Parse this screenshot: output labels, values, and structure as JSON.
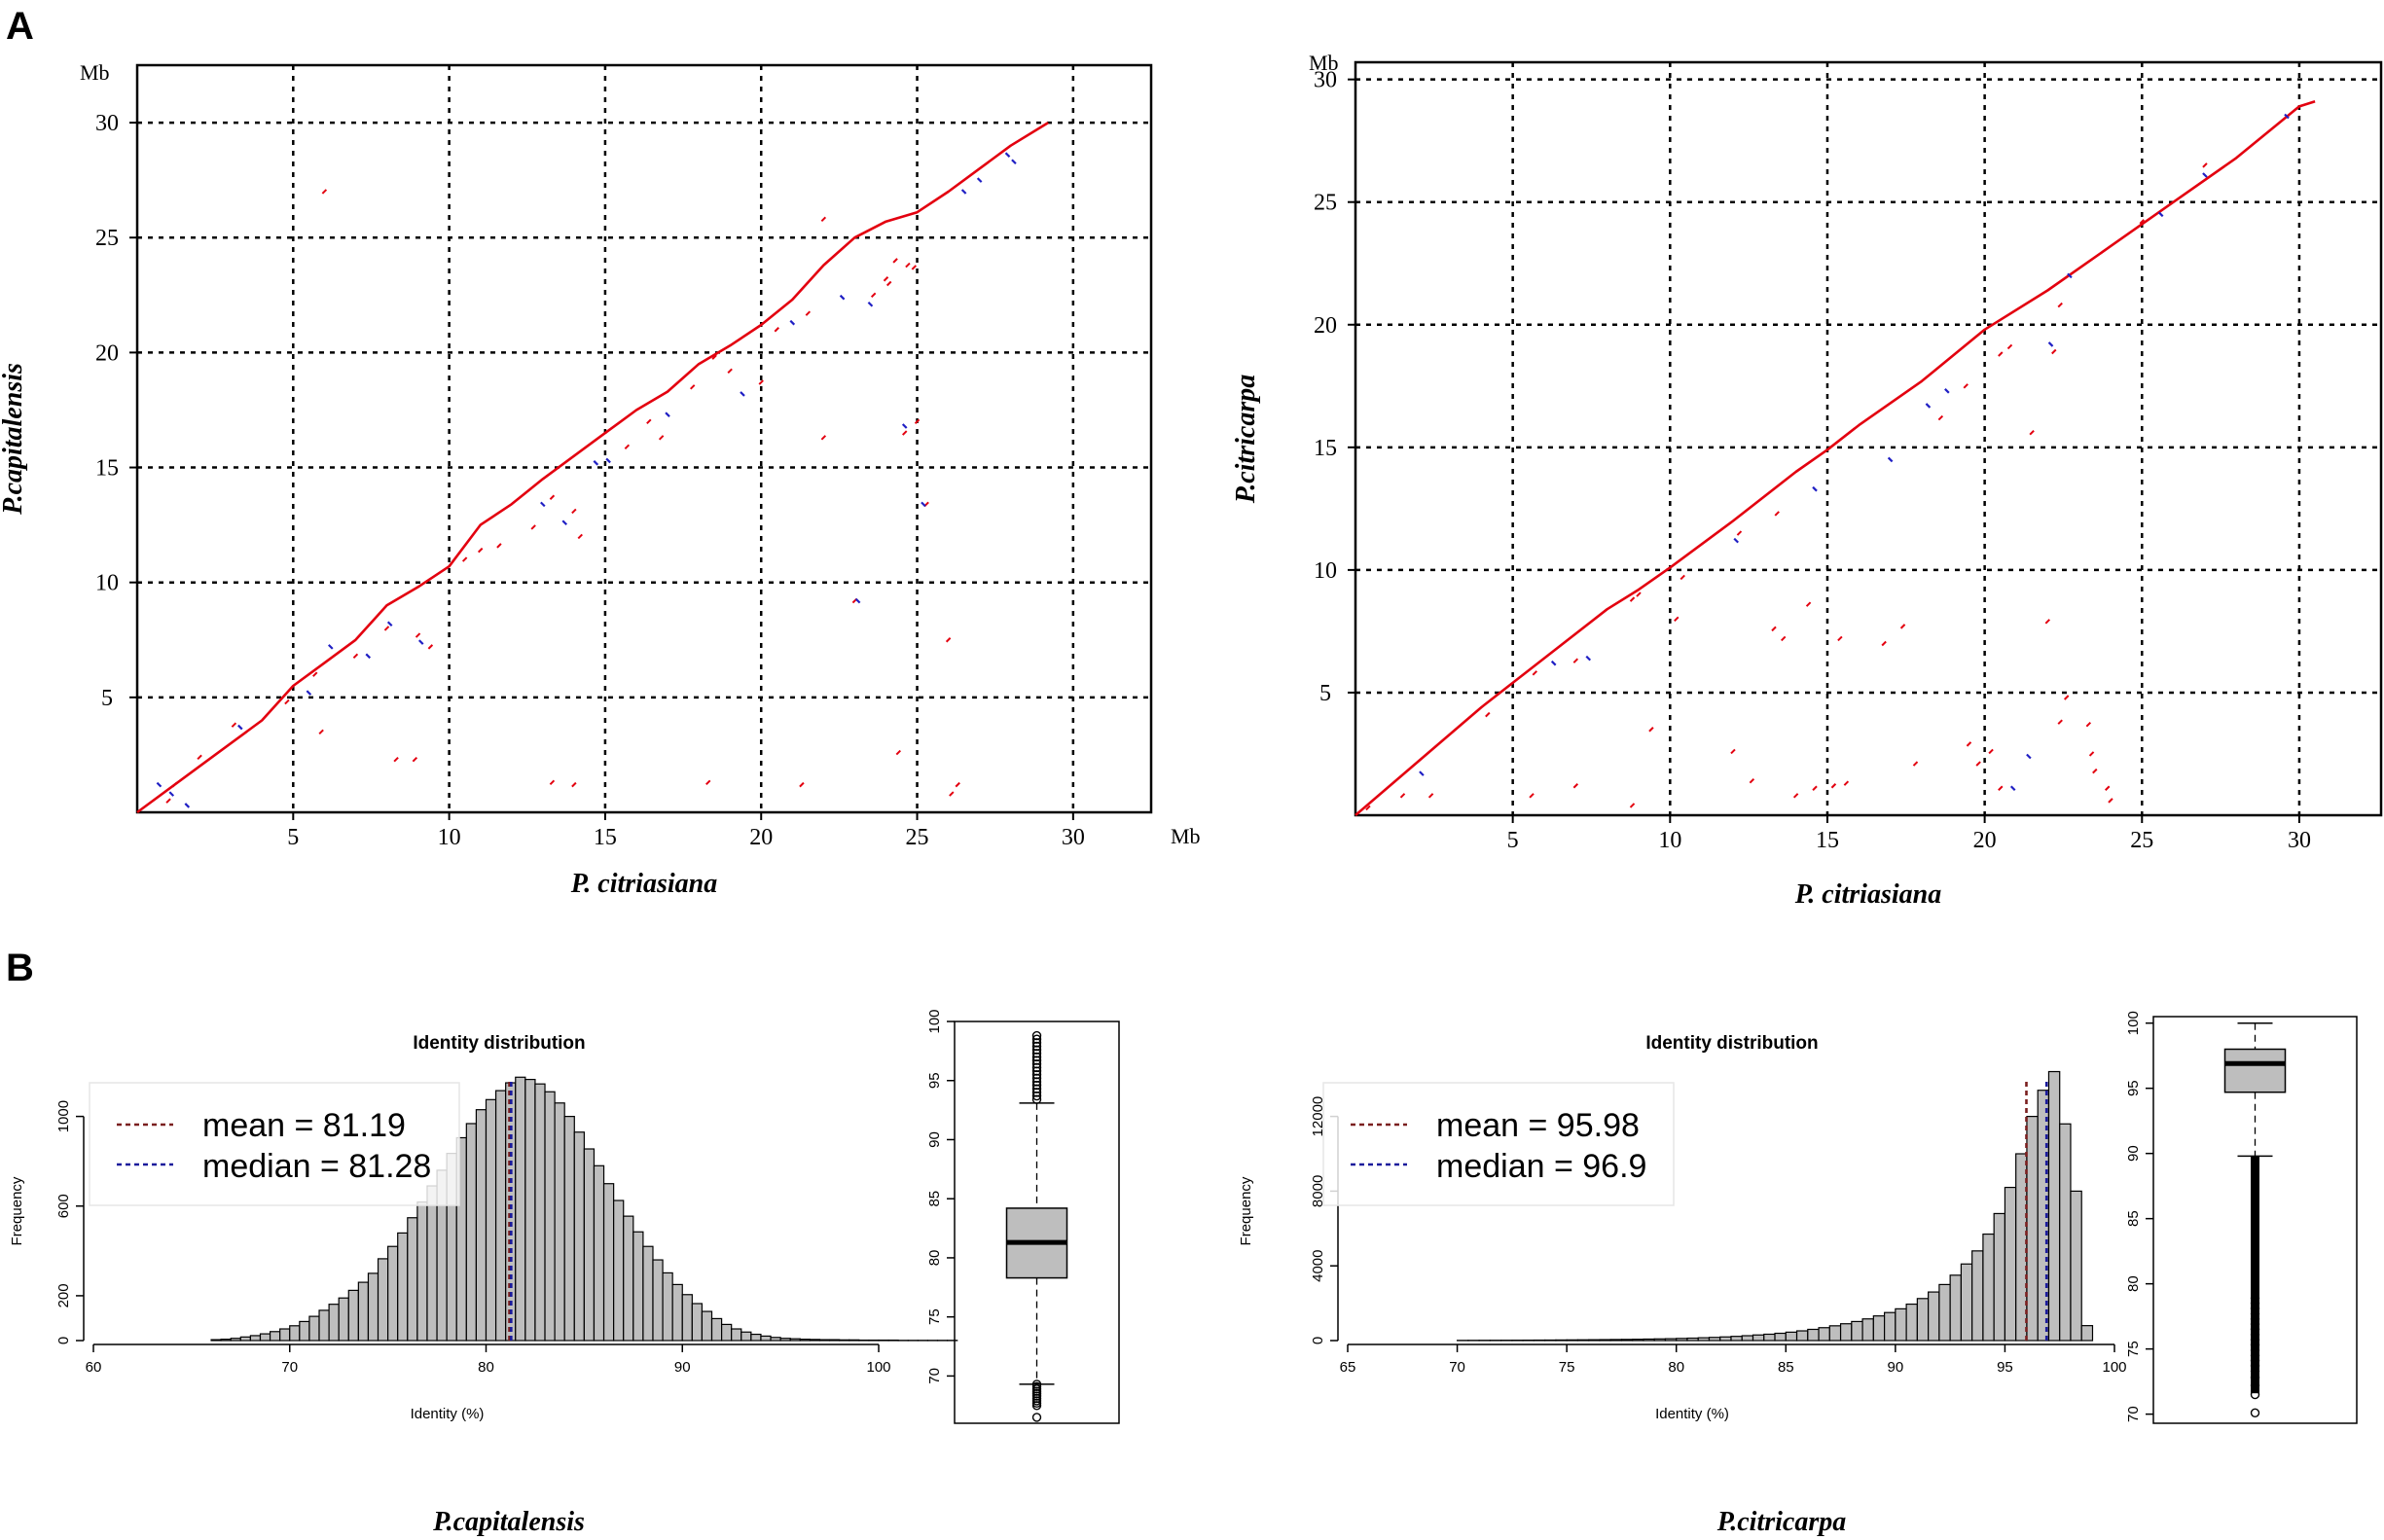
{
  "panel_labels": [
    "A",
    "B"
  ],
  "chart_data": [
    {
      "type": "scatter",
      "id": "dot1",
      "title": "",
      "xlabel": "P. citriasiana",
      "ylabel": "P.capitalensis",
      "x_unit": "Mb",
      "y_unit": "Mb",
      "xlim": [
        0,
        32.5
      ],
      "ylim": [
        0,
        32.5
      ],
      "xticks": [
        5,
        10,
        15,
        20,
        25,
        30
      ],
      "yticks": [
        5,
        10,
        15,
        20,
        25,
        30
      ],
      "grid": true,
      "colors": {
        "forward": "#e3000f",
        "reverse": "#1f1fc4"
      },
      "diagonal": [
        [
          0,
          0
        ],
        [
          2,
          2
        ],
        [
          4,
          4
        ],
        [
          5,
          5.5
        ],
        [
          6,
          6.5
        ],
        [
          7,
          7.5
        ],
        [
          8,
          9
        ],
        [
          9,
          9.8
        ],
        [
          10,
          10.7
        ],
        [
          11,
          12.5
        ],
        [
          12,
          13.4
        ],
        [
          13,
          14.5
        ],
        [
          14,
          15.5
        ],
        [
          15,
          16.5
        ],
        [
          16,
          17.5
        ],
        [
          17,
          18.3
        ],
        [
          18,
          19.5
        ],
        [
          19,
          20.3
        ],
        [
          20,
          21.2
        ],
        [
          21,
          22.3
        ],
        [
          22,
          23.8
        ],
        [
          23,
          25
        ],
        [
          24,
          25.7
        ],
        [
          25,
          26.1
        ],
        [
          26,
          27
        ],
        [
          27,
          28
        ],
        [
          28,
          29
        ],
        [
          29.2,
          30
        ]
      ],
      "scatter_forward": [
        [
          6,
          27
        ],
        [
          5.9,
          3.5
        ],
        [
          8.3,
          2.3
        ],
        [
          8.9,
          2.3
        ],
        [
          13.3,
          1.3
        ],
        [
          14,
          1.2
        ],
        [
          18.3,
          1.3
        ],
        [
          21.3,
          1.2
        ],
        [
          24.4,
          2.6
        ],
        [
          26.1,
          0.8
        ],
        [
          26.3,
          1.2
        ],
        [
          26,
          7.5
        ],
        [
          23,
          9.2
        ],
        [
          25.3,
          13.4
        ],
        [
          24.6,
          16.5
        ],
        [
          25,
          17
        ],
        [
          22,
          16.3
        ],
        [
          23.6,
          22.5
        ],
        [
          24,
          23.2
        ],
        [
          24.7,
          23.8
        ],
        [
          24.3,
          24
        ],
        [
          24.1,
          23
        ],
        [
          21.5,
          21.7
        ],
        [
          20.5,
          21
        ],
        [
          18.5,
          19.8
        ],
        [
          19,
          19.2
        ],
        [
          17.8,
          18.5
        ],
        [
          16.4,
          17
        ],
        [
          15.7,
          15.9
        ],
        [
          14.2,
          12
        ],
        [
          14,
          13.1
        ],
        [
          13.3,
          13.7
        ],
        [
          11.6,
          11.6
        ],
        [
          12.7,
          12.4
        ],
        [
          9,
          7.7
        ],
        [
          9.4,
          7.2
        ],
        [
          8,
          8
        ],
        [
          7,
          6.8
        ],
        [
          5.7,
          6
        ],
        [
          4.8,
          4.8
        ],
        [
          3.1,
          3.8
        ],
        [
          2,
          2.4
        ],
        [
          1.2,
          1.2
        ],
        [
          1,
          0.5
        ],
        [
          22,
          25.8
        ],
        [
          24.9,
          23.7
        ],
        [
          20,
          18.7
        ],
        [
          16.8,
          16.3
        ],
        [
          10.5,
          11
        ],
        [
          11,
          11.4
        ]
      ],
      "scatter_reverse": [
        [
          8.1,
          8.2
        ],
        [
          7.4,
          6.8
        ],
        [
          9.1,
          7.4
        ],
        [
          6.2,
          7.2
        ],
        [
          5.5,
          5.2
        ],
        [
          3.3,
          3.7
        ],
        [
          1.1,
          0.8
        ],
        [
          0.7,
          1.2
        ],
        [
          1.6,
          0.3
        ],
        [
          13,
          13.4
        ],
        [
          13.7,
          12.6
        ],
        [
          14.7,
          15.2
        ],
        [
          15.1,
          15.3
        ],
        [
          17,
          17.3
        ],
        [
          19.4,
          18.2
        ],
        [
          22.6,
          22.4
        ],
        [
          23.5,
          22.1
        ],
        [
          21,
          21.3
        ],
        [
          24.6,
          16.8
        ],
        [
          25.2,
          13.4
        ],
        [
          23.1,
          9.2
        ],
        [
          27,
          27.5
        ],
        [
          26.5,
          27
        ],
        [
          27.9,
          28.6
        ],
        [
          28.1,
          28.3
        ]
      ]
    },
    {
      "type": "scatter",
      "id": "dot2",
      "title": "",
      "xlabel": "P. citriasiana",
      "ylabel": "P.citricarpa",
      "x_unit": "Mb",
      "y_unit": "Mb",
      "xlim": [
        0,
        32.6
      ],
      "ylim": [
        0,
        30.7
      ],
      "xticks": [
        5,
        10,
        15,
        20,
        25,
        30
      ],
      "yticks": [
        5,
        10,
        15,
        20,
        25,
        30
      ],
      "grid": true,
      "colors": {
        "forward": "#e3000f",
        "reverse": "#1f1fc4"
      },
      "diagonal": [
        [
          0,
          0
        ],
        [
          2,
          2.2
        ],
        [
          4,
          4.4
        ],
        [
          6,
          6.4
        ],
        [
          8,
          8.4
        ],
        [
          9,
          9.2
        ],
        [
          10,
          10.1
        ],
        [
          12,
          12
        ],
        [
          14,
          14
        ],
        [
          15,
          14.9
        ],
        [
          16,
          15.9
        ],
        [
          18,
          17.7
        ],
        [
          20,
          19.8
        ],
        [
          22,
          21.4
        ],
        [
          24,
          23.2
        ],
        [
          26,
          25
        ],
        [
          28,
          26.8
        ],
        [
          30,
          28.9
        ],
        [
          30.5,
          29.1
        ]
      ],
      "scatter_forward": [
        [
          0.4,
          0.3
        ],
        [
          1.5,
          0.8
        ],
        [
          2.4,
          0.8
        ],
        [
          5.6,
          0.8
        ],
        [
          7,
          1.2
        ],
        [
          8.8,
          0.4
        ],
        [
          9.4,
          3.5
        ],
        [
          10.2,
          8
        ],
        [
          8.8,
          8.8
        ],
        [
          12,
          2.6
        ],
        [
          12.6,
          1.4
        ],
        [
          14,
          0.8
        ],
        [
          14.6,
          1.1
        ],
        [
          15.2,
          1.2
        ],
        [
          15.6,
          1.3
        ],
        [
          13.3,
          7.6
        ],
        [
          13.6,
          7.2
        ],
        [
          14.4,
          8.6
        ],
        [
          15.4,
          7.2
        ],
        [
          16.8,
          7
        ],
        [
          17.4,
          7.7
        ],
        [
          17.8,
          2.1
        ],
        [
          18.6,
          16.2
        ],
        [
          19.4,
          17.5
        ],
        [
          19.5,
          2.9
        ],
        [
          19.8,
          2.1
        ],
        [
          20.2,
          2.6
        ],
        [
          20.5,
          1.1
        ],
        [
          21.5,
          15.6
        ],
        [
          22,
          7.9
        ],
        [
          22.2,
          18.9
        ],
        [
          22.4,
          20.8
        ],
        [
          22.6,
          4.8
        ],
        [
          22.4,
          3.8
        ],
        [
          23.3,
          3.7
        ],
        [
          23.4,
          2.5
        ],
        [
          23.5,
          1.8
        ],
        [
          23.9,
          1.1
        ],
        [
          24,
          0.6
        ],
        [
          13.4,
          12.3
        ],
        [
          12.2,
          11.5
        ],
        [
          10.4,
          9.7
        ],
        [
          9,
          9
        ],
        [
          7,
          6.3
        ],
        [
          5.7,
          5.8
        ],
        [
          4.2,
          4.1
        ],
        [
          20.5,
          18.8
        ],
        [
          20.8,
          19.1
        ],
        [
          25,
          24.2
        ],
        [
          27,
          26.5
        ]
      ],
      "scatter_reverse": [
        [
          2.1,
          1.7
        ],
        [
          6.3,
          6.2
        ],
        [
          7.4,
          6.4
        ],
        [
          12.1,
          11.2
        ],
        [
          14.6,
          13.3
        ],
        [
          17,
          14.5
        ],
        [
          18.2,
          16.7
        ],
        [
          18.8,
          17.3
        ],
        [
          20.9,
          1.1
        ],
        [
          21.4,
          2.4
        ],
        [
          22.1,
          19.2
        ],
        [
          22.7,
          22
        ],
        [
          25.6,
          24.5
        ],
        [
          27,
          26.1
        ],
        [
          29.6,
          28.5
        ]
      ]
    },
    {
      "type": "histogram",
      "id": "hist1",
      "title": "Identity distribution",
      "xlabel": "Identity (%)",
      "ylabel": "Frequency",
      "xlim": [
        60,
        100
      ],
      "ylim": [
        0,
        1250
      ],
      "xticks": [
        60,
        70,
        80,
        90,
        100
      ],
      "yticks": [
        0,
        200,
        600,
        1000
      ],
      "bin_start": 66,
      "bin_width": 0.5,
      "counts": [
        4,
        6,
        10,
        16,
        22,
        30,
        40,
        52,
        66,
        85,
        108,
        135,
        162,
        190,
        224,
        260,
        300,
        365,
        420,
        480,
        548,
        618,
        690,
        760,
        835,
        905,
        968,
        1030,
        1075,
        1115,
        1150,
        1175,
        1165,
        1145,
        1110,
        1060,
        1000,
        930,
        855,
        780,
        700,
        625,
        555,
        485,
        420,
        360,
        302,
        250,
        205,
        165,
        130,
        98,
        72,
        52,
        38,
        28,
        20,
        14,
        10,
        8,
        6,
        5,
        4,
        4,
        3,
        3,
        2,
        2,
        2,
        2,
        1,
        1,
        1,
        1,
        1,
        1
      ],
      "mean": 81.19,
      "median": 81.28,
      "legend": [
        "mean = 81.19",
        "median = 81.28"
      ],
      "mean_color": "#7a1f1f",
      "median_color": "#1a1a9c"
    },
    {
      "type": "boxplot",
      "id": "box1",
      "ylim": [
        66,
        100
      ],
      "yticks": [
        70,
        75,
        80,
        85,
        90,
        95,
        100
      ],
      "min": 69.3,
      "q1": 78.3,
      "median": 81.3,
      "q3": 84.2,
      "max": 93.1,
      "outliers_low": [
        69.3,
        69.1,
        68.9,
        68.7,
        68.5,
        68.3,
        68.1,
        67.9,
        67.7,
        67.5,
        66.5
      ],
      "outliers_high": [
        93.4,
        93.7,
        94,
        94.3,
        94.6,
        94.9,
        95.2,
        95.5,
        95.8,
        96.1,
        96.4,
        96.7,
        97,
        97.3,
        97.6,
        97.9,
        98.2,
        98.5,
        98.8
      ]
    },
    {
      "type": "histogram",
      "id": "hist2",
      "title": "Identity distribution",
      "xlabel": "Identity (%)",
      "ylabel": "Frequency",
      "xlim": [
        65,
        100
      ],
      "ylim": [
        0,
        15000
      ],
      "xticks": [
        65,
        70,
        75,
        80,
        85,
        90,
        95,
        100
      ],
      "yticks": [
        0,
        4000,
        8000,
        12000
      ],
      "bin_start": 70,
      "bin_width": 0.5,
      "counts": [
        10,
        12,
        14,
        16,
        18,
        20,
        22,
        25,
        28,
        32,
        36,
        40,
        45,
        50,
        56,
        62,
        70,
        80,
        90,
        100,
        115,
        130,
        150,
        170,
        195,
        225,
        260,
        300,
        340,
        390,
        450,
        520,
        600,
        690,
        790,
        900,
        1020,
        1160,
        1320,
        1500,
        1700,
        1950,
        2250,
        2600,
        3000,
        3500,
        4100,
        4800,
        5700,
        6800,
        8200,
        10000,
        12000,
        13400,
        14400,
        11600,
        8000,
        800
      ],
      "mean": 95.98,
      "median": 96.9,
      "legend": [
        "mean = 95.98",
        "median = 96.9"
      ],
      "mean_color": "#7a1f1f",
      "median_color": "#1a1a9c"
    },
    {
      "type": "boxplot",
      "id": "box2",
      "ylim": [
        69.3,
        100.5
      ],
      "yticks": [
        70,
        75,
        80,
        85,
        90,
        95,
        100
      ],
      "min": 89.8,
      "q1": 94.7,
      "median": 96.9,
      "q3": 98,
      "max": 100,
      "outliers_low_range": [
        71.6,
        89.8
      ],
      "outliers_low_sparse": [
        71.5,
        72.2,
        72.8,
        73.3,
        73.7,
        74.1,
        74.5,
        74.9,
        75.3,
        75.7,
        76.1,
        76.5,
        76.9,
        77.3,
        77.7,
        78.1,
        78.5,
        78.9,
        70.1
      ]
    }
  ],
  "species_labels": [
    "P.capitalensis",
    "P.citricarpa"
  ]
}
